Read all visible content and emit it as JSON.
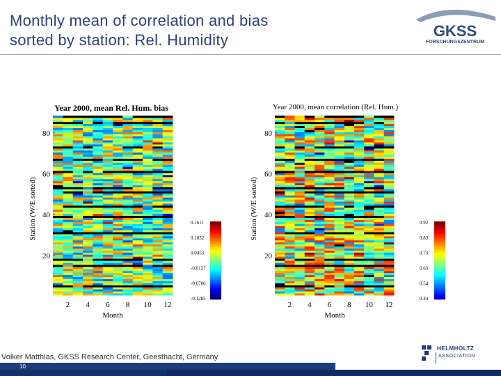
{
  "slide": {
    "title_line1": "Monthly mean of correlation and bias",
    "title_line2": "sorted by station: Rel. Humidity",
    "footer": "Volker Matthias, GKSS Research Center, Geesthacht, Germany",
    "page_number": "10"
  },
  "logo": {
    "gkss_text": "GKSS",
    "gkss_subtext": "FORSCHUNGSZENTRUM",
    "helmholtz_line1": "HELMHOLTZ",
    "helmholtz_line2": "ASSOCIATION"
  },
  "colors": {
    "title": "#2b3f80",
    "brand_blue": "#1d3a7a"
  },
  "chart_data": [
    {
      "type": "heatmap",
      "title": "Year 2000, mean Rel. Hum. bias",
      "xlabel": "Month",
      "ylabel": "Station (W/E sorted)",
      "x_ticks": [
        2,
        4,
        6,
        8,
        10,
        12
      ],
      "y_ticks": [
        20,
        40,
        60,
        80
      ],
      "xlim": [
        1,
        12
      ],
      "ylim": [
        1,
        88
      ],
      "colorbar_labels": [
        "0.1611",
        "0.1032",
        "0.0453",
        "-0.0127",
        "-0.0706",
        "-0.1285"
      ],
      "colorbar_range": [
        -0.1285,
        0.1611
      ]
    },
    {
      "type": "heatmap",
      "title": "Year 2000, mean correlation (Rel. Hum.)",
      "xlabel": "Month",
      "ylabel": "Station (W/E sorted)",
      "x_ticks": [
        2,
        4,
        6,
        8,
        10,
        12
      ],
      "y_ticks": [
        20,
        40,
        60,
        80
      ],
      "xlim": [
        1,
        12
      ],
      "ylim": [
        1,
        88
      ],
      "colorbar_labels": [
        "0.92",
        "0.83",
        "0.73",
        "0.63",
        "0.54",
        "0.44"
      ],
      "colorbar_range": [
        0.44,
        0.92
      ]
    }
  ]
}
